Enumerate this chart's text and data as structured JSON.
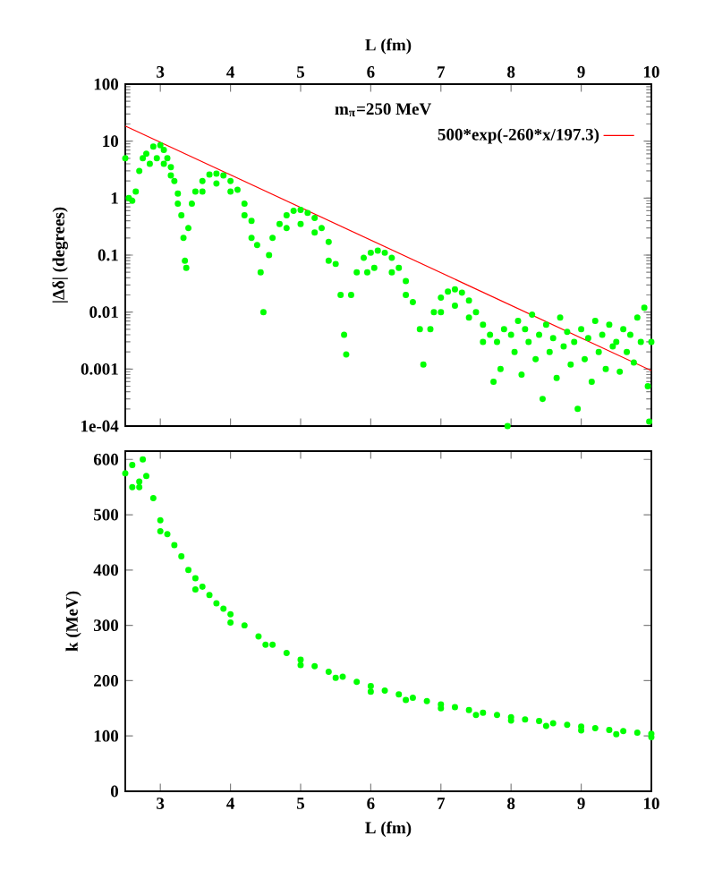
{
  "chart_data": [
    {
      "type": "scatter",
      "xlabel": "L (fm)",
      "ylabel": "|Δδ| (degrees)",
      "xlim": [
        2.5,
        10
      ],
      "xticks": [
        3,
        4,
        5,
        6,
        7,
        8,
        9,
        10
      ],
      "ylim": [
        0.0001,
        100
      ],
      "yticks": [
        {
          "value": 0.0001,
          "label": "1e-04"
        },
        0.001,
        0.01,
        0.1,
        1,
        10,
        100
      ],
      "log": "y",
      "legend": "top right",
      "annotations": [
        "m$_{π}$=250 MeV"
      ],
      "series": [
        {
          "type": "scatter",
          "marker": "circle",
          "color": "#00ff00",
          "x": [
            2.5,
            2.55,
            2.6,
            2.65,
            2.7,
            2.75,
            2.8,
            2.9,
            3.0,
            3.05,
            3.1,
            3.15,
            3.2,
            3.25,
            3.3,
            3.33,
            3.35,
            3.37,
            2.85,
            2.95,
            3.05,
            3.15,
            3.25,
            3.4,
            3.45,
            3.5,
            3.6,
            3.7,
            3.8,
            3.9,
            4.0,
            4.1,
            4.2,
            4.3,
            4.38,
            4.43,
            4.47,
            3.6,
            3.8,
            4.0,
            4.2,
            4.3,
            4.55,
            4.6,
            4.7,
            4.8,
            4.9,
            5.0,
            5.1,
            5.2,
            5.3,
            5.4,
            5.5,
            5.57,
            5.62,
            5.65,
            4.8,
            5.0,
            5.2,
            5.4,
            5.72,
            5.8,
            5.9,
            6.0,
            6.1,
            6.2,
            6.3,
            6.4,
            6.5,
            6.6,
            6.7,
            6.75,
            5.95,
            6.05,
            6.3,
            6.5,
            6.85,
            6.9,
            7.0,
            7.1,
            7.2,
            7.3,
            7.4,
            7.5,
            7.6,
            7.7,
            7.0,
            7.2,
            7.4,
            7.6,
            7.75,
            7.8,
            7.85,
            7.9,
            7.95,
            8.0,
            8.05,
            8.1,
            8.15,
            8.2,
            8.25,
            8.3,
            8.35,
            8.4,
            8.45,
            8.5,
            8.55,
            8.6,
            8.65,
            8.7,
            8.75,
            8.8,
            8.85,
            8.9,
            8.95,
            9.0,
            9.05,
            9.1,
            9.15,
            9.2,
            9.25,
            9.3,
            9.35,
            9.4,
            9.45,
            9.5,
            9.55,
            9.6,
            9.65,
            9.7,
            9.75,
            9.8,
            9.85,
            9.9,
            9.95,
            10.0,
            9.97
          ],
          "values": [
            5,
            1.0,
            0.9,
            1.3,
            3,
            5,
            6,
            8,
            8.5,
            7,
            5,
            3.5,
            2,
            1.2,
            0.5,
            0.2,
            0.08,
            0.06,
            4,
            5,
            4,
            2.5,
            0.8,
            0.3,
            0.8,
            1.3,
            2.0,
            2.6,
            2.7,
            2.5,
            2.0,
            1.4,
            0.8,
            0.4,
            0.15,
            0.05,
            0.01,
            1.3,
            1.8,
            1.3,
            0.5,
            0.2,
            0.1,
            0.2,
            0.35,
            0.5,
            0.6,
            0.62,
            0.55,
            0.45,
            0.3,
            0.17,
            0.07,
            0.02,
            0.004,
            0.0018,
            0.3,
            0.35,
            0.25,
            0.08,
            0.02,
            0.05,
            0.09,
            0.11,
            0.12,
            0.11,
            0.09,
            0.06,
            0.035,
            0.015,
            0.005,
            0.0012,
            0.05,
            0.06,
            0.05,
            0.02,
            0.005,
            0.01,
            0.018,
            0.023,
            0.025,
            0.022,
            0.016,
            0.01,
            0.006,
            0.004,
            0.01,
            0.013,
            0.008,
            0.003,
            0.0006,
            0.003,
            0.001,
            0.005,
            0.0001,
            0.004,
            0.002,
            0.007,
            0.0008,
            0.005,
            0.003,
            0.009,
            0.0015,
            0.004,
            0.0003,
            0.006,
            0.002,
            0.0035,
            0.0007,
            0.008,
            0.0025,
            0.0045,
            0.0012,
            0.003,
            0.0002,
            0.005,
            0.0015,
            0.0035,
            0.0006,
            0.007,
            0.002,
            0.004,
            0.001,
            0.006,
            0.0025,
            0.003,
            0.0009,
            0.005,
            0.002,
            0.004,
            0.0013,
            0.008,
            0.003,
            0.012,
            0.0005,
            0.003,
            0.00012
          ]
        },
        {
          "type": "line",
          "name": "500*exp(-260*x/197.3)",
          "color": "#ff0000",
          "line_style": "solid",
          "marker": "none",
          "x": [
            2.5,
            10
          ],
          "values": [
            18.5,
            0.00094
          ]
        }
      ]
    },
    {
      "type": "scatter",
      "xlabel": "L (fm)",
      "ylabel": "k (MeV)",
      "xlim": [
        2.5,
        10
      ],
      "xticks": [
        3,
        4,
        5,
        6,
        7,
        8,
        9,
        10
      ],
      "ylim": [
        0,
        615
      ],
      "yticks": [
        0,
        100,
        200,
        300,
        400,
        500,
        600
      ],
      "series": [
        {
          "type": "scatter",
          "marker": "circle",
          "color": "#00ff00",
          "x": [
            2.5,
            2.6,
            2.7,
            2.75,
            2.8,
            2.9,
            3.0,
            3.1,
            3.2,
            3.3,
            3.4,
            3.5,
            3.6,
            3.7,
            3.8,
            3.9,
            4.0,
            4.2,
            4.4,
            4.6,
            4.8,
            5.0,
            5.2,
            5.4,
            5.6,
            5.8,
            6.0,
            6.2,
            6.4,
            6.6,
            6.8,
            7.0,
            7.2,
            7.4,
            7.6,
            7.8,
            8.0,
            8.2,
            8.4,
            8.6,
            8.8,
            9.0,
            9.2,
            9.4,
            9.6,
            9.8,
            10.0,
            3.0,
            3.5,
            4.0,
            4.5,
            5.0,
            5.5,
            6.0,
            6.5,
            7.0,
            7.5,
            8.0,
            8.5,
            9.0,
            9.5,
            10.0,
            2.6,
            2.7
          ],
          "values": [
            575,
            590,
            560,
            600,
            570,
            530,
            490,
            465,
            445,
            425,
            400,
            385,
            370,
            355,
            340,
            330,
            320,
            300,
            280,
            265,
            250,
            238,
            226,
            216,
            207,
            198,
            190,
            182,
            175,
            169,
            163,
            157,
            152,
            147,
            142,
            138,
            134,
            130,
            127,
            123,
            120,
            117,
            114,
            111,
            109,
            106,
            104,
            470,
            365,
            305,
            265,
            228,
            205,
            180,
            165,
            150,
            138,
            128,
            118,
            110,
            103,
            98,
            550,
            550
          ]
        }
      ]
    }
  ]
}
